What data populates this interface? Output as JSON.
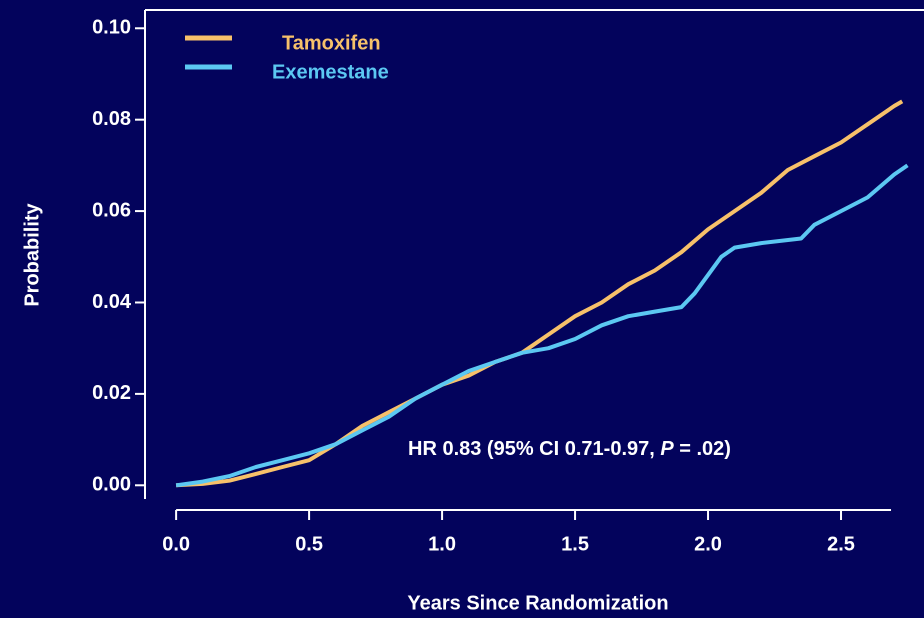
{
  "chart_data": {
    "type": "line",
    "annotation": [
      "HR 0.83 (95% CI 0.71-0.97, ",
      "P",
      " = .02)"
    ],
    "xlabel": "Years Since Randomization",
    "ylabel": "Probability",
    "xlim": [
      -0.117,
      2.812
    ],
    "ylim": [
      -0.003,
      0.104
    ],
    "xticks": [
      {
        "value": 0,
        "label": "0.0"
      },
      {
        "value": 0.5,
        "label": "0.5"
      },
      {
        "value": 1,
        "label": "1.0"
      },
      {
        "value": 1.5,
        "label": "1.5"
      },
      {
        "value": 2,
        "label": "2.0"
      },
      {
        "value": 2.5,
        "label": "2.5"
      }
    ],
    "yticks": [
      {
        "value": 0,
        "label": "0.00"
      },
      {
        "value": 0.02,
        "label": "0.02"
      },
      {
        "value": 0.04,
        "label": "0.04"
      },
      {
        "value": 0.06,
        "label": "0.06"
      },
      {
        "value": 0.08,
        "label": "0.08"
      },
      {
        "value": 0.1,
        "label": "0.10"
      }
    ],
    "legend": "upper left",
    "series": [
      {
        "name": "Tamoxifen",
        "color": "#f7c16a",
        "x": [
          0,
          0.1,
          0.2,
          0.3,
          0.4,
          0.5,
          0.6,
          0.7,
          0.8,
          0.9,
          1.0,
          1.1,
          1.2,
          1.3,
          1.4,
          1.5,
          1.6,
          1.7,
          1.8,
          1.9,
          2.0,
          2.1,
          2.2,
          2.3,
          2.4,
          2.5,
          2.6,
          2.7,
          2.73
        ],
        "values": [
          0,
          0.0003,
          0.001,
          0.0025,
          0.004,
          0.0055,
          0.009,
          0.013,
          0.016,
          0.019,
          0.022,
          0.024,
          0.027,
          0.029,
          0.033,
          0.037,
          0.04,
          0.044,
          0.047,
          0.051,
          0.056,
          0.06,
          0.064,
          0.069,
          0.072,
          0.075,
          0.079,
          0.083,
          0.084
        ]
      },
      {
        "name": "Exemestane",
        "color": "#5cc8f2",
        "x": [
          0,
          0.1,
          0.2,
          0.3,
          0.4,
          0.5,
          0.6,
          0.7,
          0.8,
          0.9,
          1.0,
          1.1,
          1.2,
          1.3,
          1.4,
          1.5,
          1.6,
          1.7,
          1.8,
          1.9,
          1.95,
          2.0,
          2.05,
          2.1,
          2.2,
          2.35,
          2.4,
          2.5,
          2.6,
          2.7,
          2.75
        ],
        "values": [
          0,
          0.0008,
          0.002,
          0.004,
          0.0055,
          0.007,
          0.009,
          0.012,
          0.015,
          0.019,
          0.022,
          0.025,
          0.027,
          0.029,
          0.03,
          0.032,
          0.035,
          0.037,
          0.038,
          0.039,
          0.042,
          0.046,
          0.05,
          0.052,
          0.053,
          0.054,
          0.057,
          0.06,
          0.063,
          0.068,
          0.07
        ]
      }
    ]
  }
}
